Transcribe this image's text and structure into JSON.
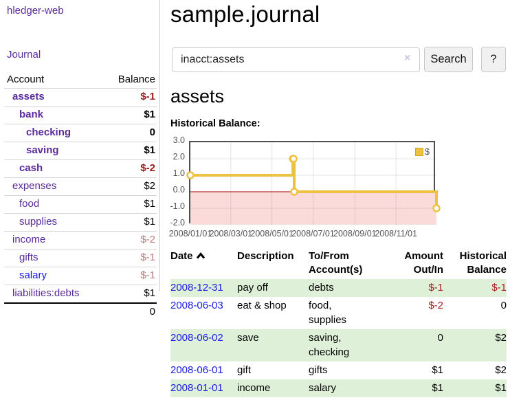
{
  "app": {
    "brand": "hledger-web",
    "nav_journal": "Journal"
  },
  "sidebar": {
    "header": {
      "account": "Account",
      "balance": "Balance"
    },
    "accounts": [
      {
        "name": "assets",
        "balance": "$-1",
        "indent": 0,
        "bold": true,
        "neg": "strong"
      },
      {
        "name": "bank",
        "balance": "$1",
        "indent": 1,
        "bold": true,
        "neg": "none"
      },
      {
        "name": "checking",
        "balance": "0",
        "indent": 2,
        "bold": true,
        "neg": "none"
      },
      {
        "name": "saving",
        "balance": "$1",
        "indent": 2,
        "bold": true,
        "neg": "none"
      },
      {
        "name": "cash",
        "balance": "$-2",
        "indent": 1,
        "bold": true,
        "neg": "strong"
      },
      {
        "name": "expenses",
        "balance": "$2",
        "indent": 0,
        "bold": false,
        "neg": "none"
      },
      {
        "name": "food",
        "balance": "$1",
        "indent": 1,
        "bold": false,
        "neg": "none"
      },
      {
        "name": "supplies",
        "balance": "$1",
        "indent": 1,
        "bold": false,
        "neg": "none"
      },
      {
        "name": "income",
        "balance": "$-2",
        "indent": 0,
        "bold": false,
        "neg": "faded"
      },
      {
        "name": "gifts",
        "balance": "$-1",
        "indent": 1,
        "bold": false,
        "neg": "faded"
      },
      {
        "name": "salary",
        "balance": "$-1",
        "indent": 1,
        "bold": false,
        "neg": "faded",
        "link_style": "unvisited"
      },
      {
        "name": "liabilities:debts",
        "balance": "$1",
        "indent": 0,
        "bold": false,
        "neg": "none"
      }
    ],
    "total": "0"
  },
  "header": {
    "title": "sample.journal"
  },
  "search": {
    "value": "inacct:assets",
    "clear_icon": "×",
    "button_label": "Search",
    "help_label": "?"
  },
  "account_page": {
    "heading": "assets",
    "chart_title": "Historical Balance:"
  },
  "chart_data": {
    "type": "line",
    "title": "Historical Balance",
    "series": [
      {
        "name": "$",
        "color": "#edc240",
        "step": true,
        "points": [
          [
            "2008-01-01",
            1
          ],
          [
            "2008-06-01",
            2
          ],
          [
            "2008-06-02",
            2
          ],
          [
            "2008-06-03",
            0
          ],
          [
            "2008-12-31",
            -1
          ]
        ]
      }
    ],
    "x_range": [
      "2008-01-01",
      "2008-12-31"
    ],
    "ylim": [
      -2,
      3
    ],
    "y_ticks": [
      "3.0",
      "2.0",
      "1.0",
      "0.0",
      "-1.0",
      "-2.0"
    ],
    "x_ticks": [
      "2008/01/01",
      "2008/03/01",
      "2008/05/01",
      "2008/07/01",
      "2008/09/01",
      "2008/11/01"
    ],
    "grid": true,
    "legend_position": "top-right",
    "legend_label": "$",
    "negative_region_color": "#fbdada",
    "zero_line_color": "#a00000"
  },
  "transactions": {
    "columns": {
      "date": "Date",
      "description": "Description",
      "tofrom": "To/From Account(s)",
      "amount": "Amount Out/In",
      "balance": "Historical Balance"
    },
    "rows": [
      {
        "date": "2008-12-31",
        "description": "pay off",
        "accounts": "debts",
        "amount": "$-1",
        "amount_neg": true,
        "balance": "$-1",
        "balance_neg": true
      },
      {
        "date": "2008-06-03",
        "description": "eat & shop",
        "accounts": "food, supplies",
        "amount": "$-2",
        "amount_neg": true,
        "balance": "0",
        "balance_neg": false
      },
      {
        "date": "2008-06-02",
        "description": "save",
        "accounts": "saving, checking",
        "amount": "0",
        "amount_neg": false,
        "balance": "$2",
        "balance_neg": false
      },
      {
        "date": "2008-06-01",
        "description": "gift",
        "accounts": "gifts",
        "amount": "$1",
        "amount_neg": false,
        "balance": "$2",
        "balance_neg": false
      },
      {
        "date": "2008-01-01",
        "description": "income",
        "accounts": "salary",
        "amount": "$1",
        "amount_neg": false,
        "balance": "$1",
        "balance_neg": false
      }
    ]
  }
}
